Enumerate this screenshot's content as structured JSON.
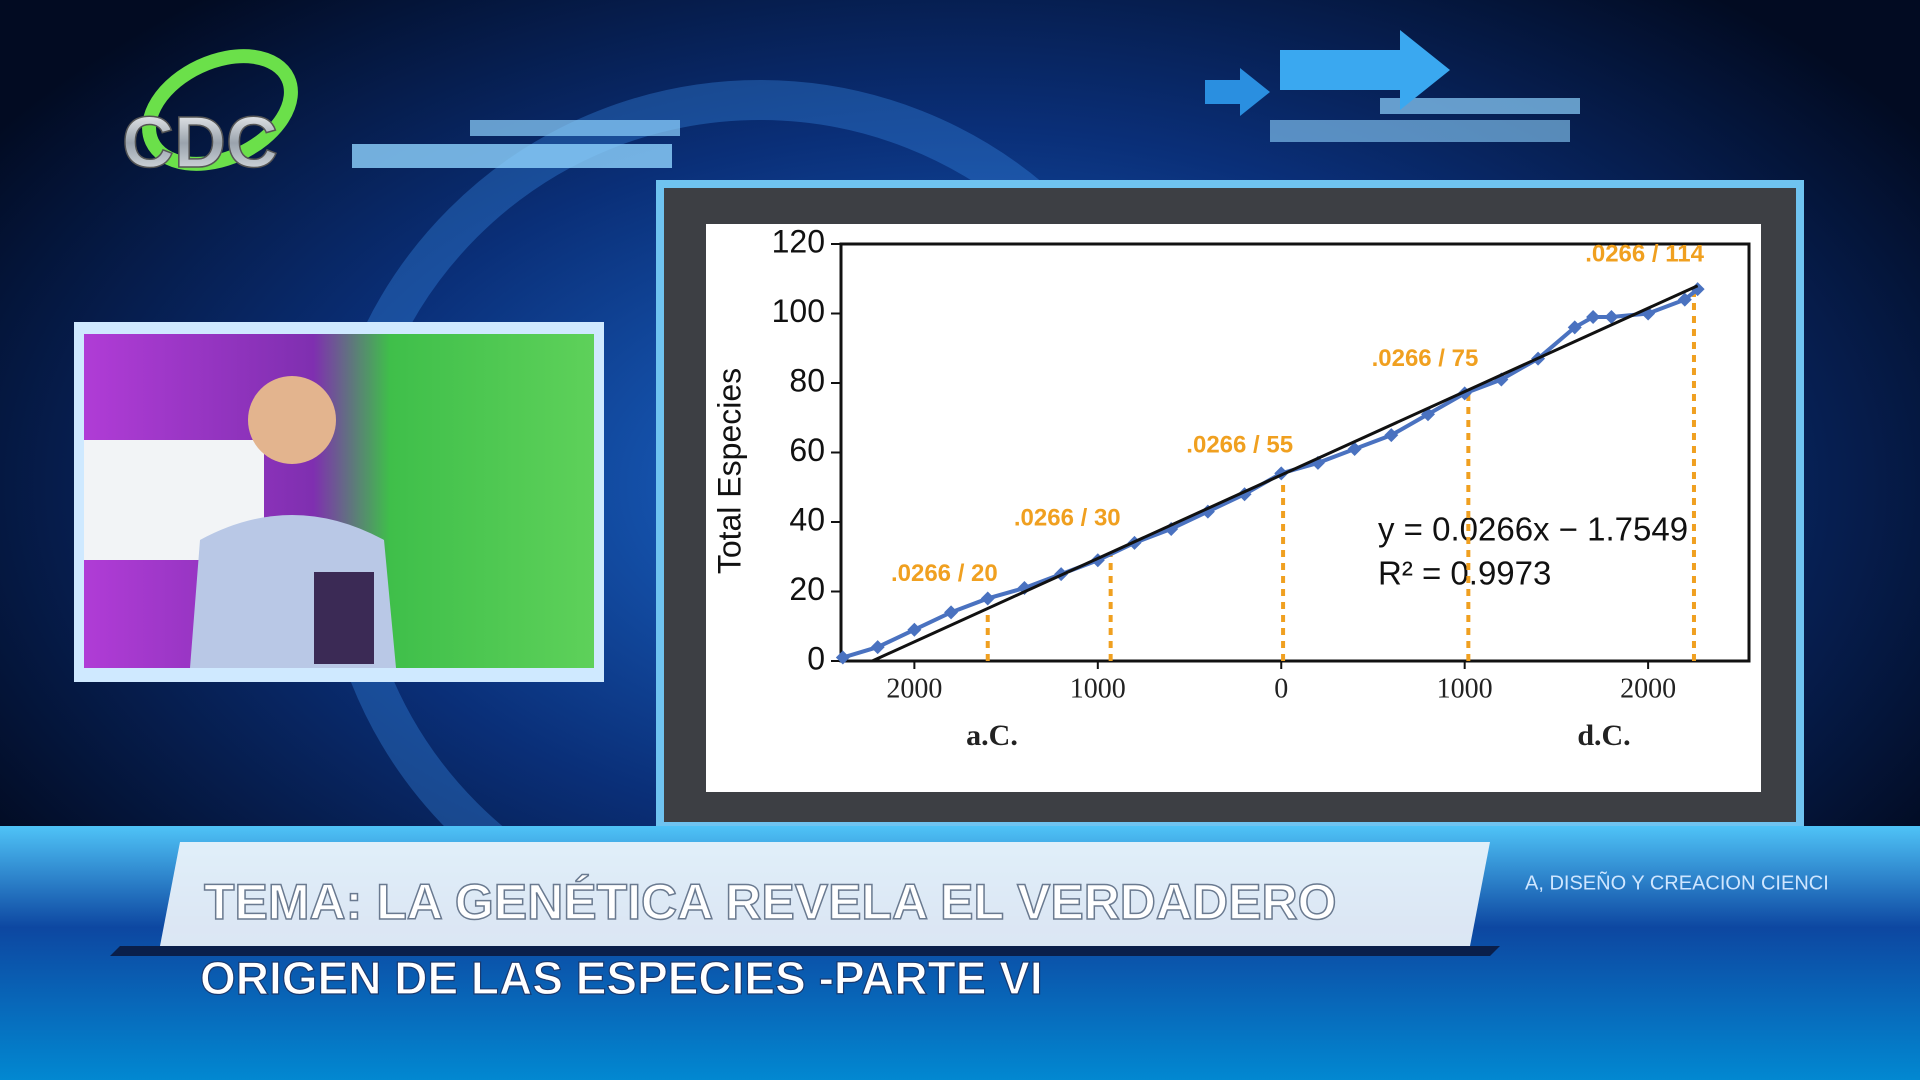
{
  "logo": "CDC",
  "chart_data": {
    "type": "scatter",
    "y_label": "Total Especies",
    "x": [
      -2390,
      -2200,
      -2000,
      -1800,
      -1600,
      -1400,
      -1200,
      -1000,
      -800,
      -600,
      -400,
      -200,
      0,
      200,
      400,
      600,
      800,
      1000,
      1200,
      1400,
      1600,
      1700,
      1800,
      2000,
      2200,
      2270
    ],
    "series": [
      {
        "color": "#4a72c0",
        "values": [
          1,
          4,
          9,
          14,
          18,
          21,
          25,
          29,
          34,
          38,
          43,
          48,
          54,
          57,
          61,
          65,
          71,
          77,
          81,
          87,
          96,
          99,
          99,
          100,
          104,
          107
        ]
      }
    ],
    "trend": {
      "x": [
        -2230,
        2270
      ],
      "y": [
        0,
        108
      ],
      "color": "#111111"
    },
    "equation": "y = 0.0266x − 1.7549",
    "r_squared": "R² = 0.9973",
    "annotations": [
      {
        "x": -1600,
        "y": 15,
        "label": ".0266 / 20"
      },
      {
        "x": -930,
        "y": 31,
        "label": ".0266 / 30"
      },
      {
        "x": 10,
        "y": 52,
        "label": ".0266 / 55"
      },
      {
        "x": 1020,
        "y": 77,
        "label": ".0266 / 75"
      },
      {
        "x": 2250,
        "y": 107,
        "label": ".0266 / 114"
      }
    ],
    "annotation_color": "#f0a020",
    "xlim": [
      -2400,
      2550
    ],
    "ylim": [
      0,
      120
    ],
    "xticks": [
      {
        "value": -2000,
        "label": "2000"
      },
      {
        "value": -1000,
        "label": "1000"
      },
      0,
      1000,
      2000
    ],
    "yticks": [
      0,
      20,
      40,
      60,
      80,
      100,
      120
    ],
    "era_labels": [
      "a.C.",
      "d.C."
    ]
  },
  "banner": {
    "line1": "TEMA: LA GENÉTICA REVELA EL VERDADERO",
    "line2": "ORIGEN DE LAS ESPECIES -PARTE VI"
  },
  "ticker": "A, DISEÑO Y CREACION  CIENCI"
}
